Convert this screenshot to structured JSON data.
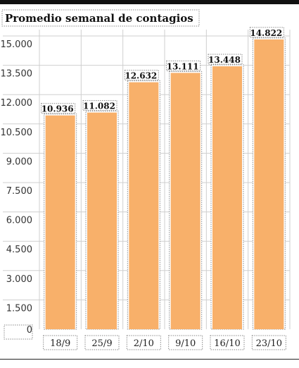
{
  "chart_data": {
    "type": "bar",
    "title": "Promedio semanal de contagios",
    "xlabel": "",
    "ylabel": "",
    "categories": [
      "18/9",
      "25/9",
      "2/10",
      "9/10",
      "16/10",
      "23/10"
    ],
    "values": [
      10936,
      11082,
      12632,
      13111,
      13448,
      14822
    ],
    "value_labels": [
      "10.936",
      "11.082",
      "12.632",
      "13.111",
      "13.448",
      "14.822"
    ],
    "ylim": [
      0,
      15000
    ],
    "yticks": [
      0,
      1500,
      3000,
      4500,
      6000,
      7500,
      9000,
      10500,
      12000,
      13500,
      15000
    ],
    "ytick_labels": [
      "0",
      "1.500",
      "3.000",
      "4.500",
      "6.000",
      "7.500",
      "9.000",
      "10.500",
      "12.000",
      "13.500",
      "15.000"
    ],
    "grid": true,
    "bar_color": "#f8b06a"
  }
}
